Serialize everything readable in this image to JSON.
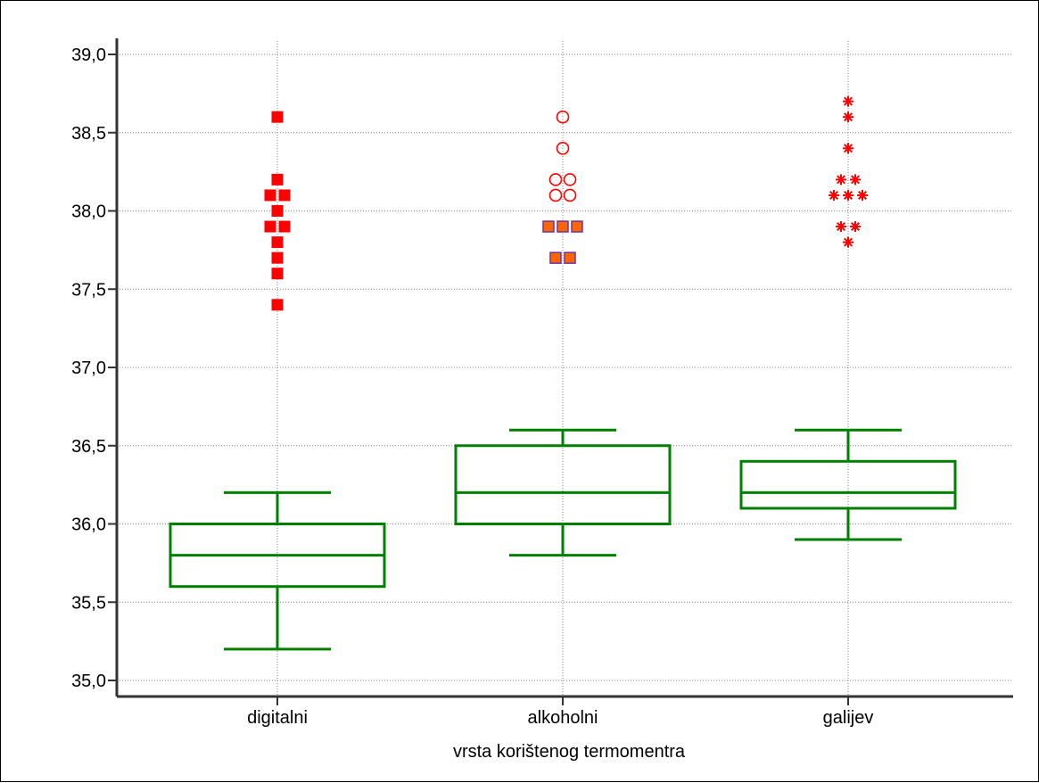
{
  "chart_data": {
    "type": "boxplot",
    "title": "",
    "xlabel": "vrsta korištenog termomentra",
    "ylabel": "",
    "ylim": [
      35.0,
      39.0
    ],
    "yticks": [
      35.0,
      35.5,
      36.0,
      36.5,
      37.0,
      37.5,
      38.0,
      38.5,
      39.0
    ],
    "ytick_labels": [
      "35,0",
      "35,5",
      "36,0",
      "36,5",
      "37,0",
      "37,5",
      "38,0",
      "38,5",
      "39,0"
    ],
    "grid": true,
    "categories": [
      "digitalni",
      "alkoholni",
      "galijev"
    ],
    "boxes": [
      {
        "category": "digitalni",
        "whisker_low": 35.2,
        "q1": 35.6,
        "median": 35.8,
        "q3": 36.0,
        "whisker_high": 36.2,
        "outliers": [
          {
            "y": 38.6,
            "marker": "square-red"
          },
          {
            "y": 38.2,
            "marker": "square-red"
          },
          {
            "y": 38.1,
            "marker": "square-red"
          },
          {
            "y": 38.1,
            "marker": "square-red"
          },
          {
            "y": 38.0,
            "marker": "square-red"
          },
          {
            "y": 37.9,
            "marker": "square-red"
          },
          {
            "y": 37.9,
            "marker": "square-red"
          },
          {
            "y": 37.8,
            "marker": "square-red"
          },
          {
            "y": 37.7,
            "marker": "square-red"
          },
          {
            "y": 37.6,
            "marker": "square-red"
          },
          {
            "y": 37.4,
            "marker": "square-red"
          }
        ]
      },
      {
        "category": "alkoholni",
        "whisker_low": 35.8,
        "q1": 36.0,
        "median": 36.2,
        "q3": 36.5,
        "whisker_high": 36.6,
        "outliers": [
          {
            "y": 38.6,
            "marker": "circle-open"
          },
          {
            "y": 38.4,
            "marker": "circle-open"
          },
          {
            "y": 38.2,
            "marker": "circle-open"
          },
          {
            "y": 38.2,
            "marker": "circle-open"
          },
          {
            "y": 38.1,
            "marker": "circle-open"
          },
          {
            "y": 38.1,
            "marker": "circle-open"
          },
          {
            "y": 37.9,
            "marker": "square-orange"
          },
          {
            "y": 37.9,
            "marker": "square-orange"
          },
          {
            "y": 37.9,
            "marker": "square-orange"
          },
          {
            "y": 37.7,
            "marker": "square-orange"
          },
          {
            "y": 37.7,
            "marker": "square-orange"
          }
        ]
      },
      {
        "category": "galijev",
        "whisker_low": 35.9,
        "q1": 36.1,
        "median": 36.2,
        "q3": 36.4,
        "whisker_high": 36.6,
        "outliers": [
          {
            "y": 38.7,
            "marker": "asterisk"
          },
          {
            "y": 38.6,
            "marker": "asterisk"
          },
          {
            "y": 38.4,
            "marker": "asterisk"
          },
          {
            "y": 38.2,
            "marker": "asterisk"
          },
          {
            "y": 38.2,
            "marker": "asterisk"
          },
          {
            "y": 38.1,
            "marker": "asterisk"
          },
          {
            "y": 38.1,
            "marker": "asterisk"
          },
          {
            "y": 38.1,
            "marker": "asterisk"
          },
          {
            "y": 37.9,
            "marker": "asterisk"
          },
          {
            "y": 37.9,
            "marker": "asterisk"
          },
          {
            "y": 37.8,
            "marker": "asterisk"
          }
        ]
      }
    ]
  },
  "colors": {
    "box": "#008000",
    "outlier_red": "#ff0000",
    "outlier_orange_fill": "#ff6600",
    "outlier_orange_edge": "#7030a0",
    "grid": "#7f7f7f",
    "axis": "#333333"
  }
}
